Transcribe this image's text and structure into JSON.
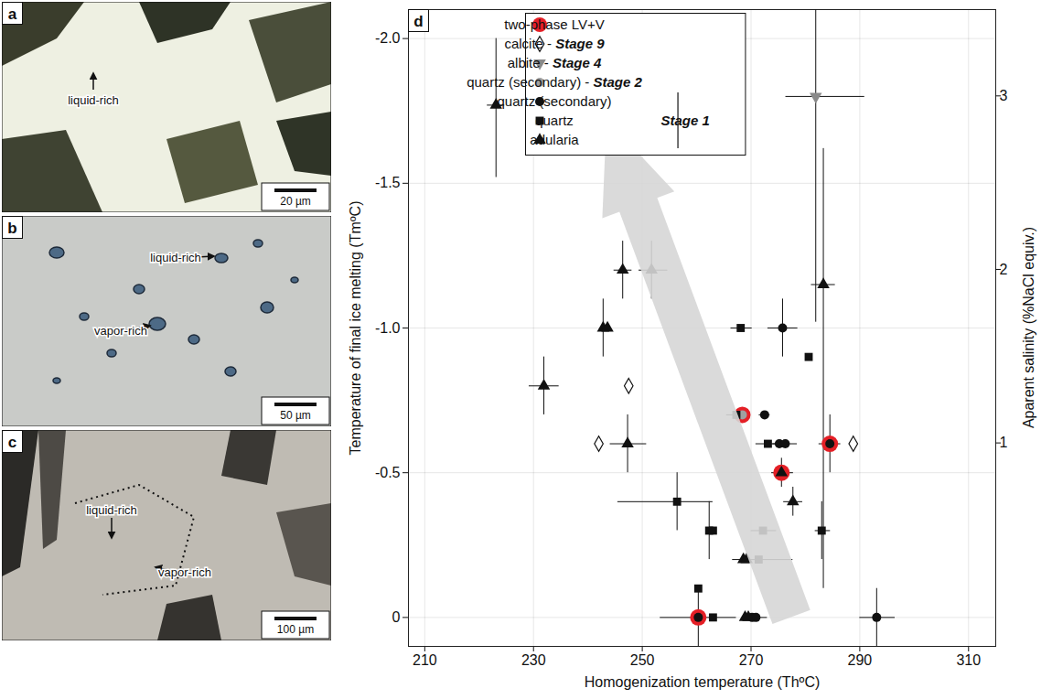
{
  "chart_data": {
    "type": "scatter",
    "panel": "d",
    "x_label": "Homogenization temperature (ThºC)",
    "y_label": "Temperature of final ice melting (TmºC)",
    "y2_label": "Aparent salinity (%NaCl equiv.)",
    "xlim": [
      207,
      315
    ],
    "xticks": [
      210,
      230,
      250,
      270,
      290,
      310
    ],
    "ylim": [
      0.1,
      -2.1
    ],
    "yticks": [
      0,
      -0.5,
      {
        "value": -1,
        "label": "-1.0"
      },
      -1.5,
      {
        "value": -2,
        "label": "-2.0"
      }
    ],
    "y2lim": [
      -0.17,
      3.5
    ],
    "y2ticks": [
      1,
      2,
      3
    ],
    "grid": true,
    "legend": "top-left",
    "annotations": [
      {
        "type": "arrow",
        "x": [
          277.5,
          243.5
        ],
        "y": [
          0,
          -1.72
        ]
      }
    ],
    "series": [
      {
        "name": "two-phase LV+V",
        "marker": "ring",
        "color": "#e41f26",
        "points": [
          {
            "x": 260.3,
            "y": 0
          },
          {
            "x": 268.4,
            "y": -0.7
          },
          {
            "x": 275.6,
            "y": -0.5
          },
          {
            "x": 284.5,
            "y": -0.6
          }
        ]
      },
      {
        "name": "calcite - Stage 9",
        "marker": "open-diamond",
        "color": "#111111",
        "points": [
          {
            "x": 247.5,
            "y": -0.8
          },
          {
            "x": 242,
            "y": -0.6
          },
          {
            "x": 288.8,
            "y": -0.6
          }
        ]
      },
      {
        "name": "albite - Stage 4",
        "marker": "triangle-down",
        "color": "#8a8a8a",
        "points": [
          {
            "x": 281.9,
            "y": -1.8,
            "x_error": [
              276.4,
              290.9
            ],
            "y_error": [
              -2.1,
              -1.02
            ]
          }
        ]
      },
      {
        "name": "quartz (secondary) - Stage 2",
        "marker": "circle",
        "color": "#a0a0a0",
        "points": [
          {
            "x": 268.4,
            "y": -0.7
          }
        ]
      },
      {
        "name": "quartz (secondary)",
        "group": "Stage 1",
        "marker": "circle",
        "color": "#111111",
        "points": [
          {
            "x": 275.8,
            "y": -1.0,
            "x_error": [
              273.1,
              278.6
            ],
            "y_error": [
              -1.1,
              -0.9
            ]
          },
          {
            "x": 272.5,
            "y": -0.7,
            "x_error": [
              271.5,
              273.5
            ]
          },
          {
            "x": 275.2,
            "y": -0.6,
            "x_error": [
              274,
              278.5
            ]
          },
          {
            "x": 276.3,
            "y": -0.6
          },
          {
            "x": 284.5,
            "y": -0.6,
            "x_error": [
              282.5,
              286.5
            ],
            "y_error": [
              -0.7,
              -0.5
            ]
          },
          {
            "x": 270.2,
            "y": 0
          },
          {
            "x": 270.9,
            "y": 0,
            "x_error": [
              269,
              273
            ]
          },
          {
            "x": 293.1,
            "y": 0,
            "x_error": [
              290,
              296.5
            ],
            "y_error": [
              -0.1,
              0.1
            ]
          },
          {
            "x": 260.3,
            "y": 0,
            "x_error": [
              253.3,
              267.3
            ],
            "y_error": [
              -0.1,
              0.1
            ]
          }
        ]
      },
      {
        "name": "quartz",
        "group": "Stage 1",
        "marker": "square",
        "color": "#111111",
        "points": [
          {
            "x": 268.1,
            "y": -1.0,
            "x_error": [
              266.3,
              270.2
            ]
          },
          {
            "x": 280.6,
            "y": -0.9
          },
          {
            "x": 267.3,
            "y": -0.7,
            "x_error": [
              265.5,
              268.8
            ]
          },
          {
            "x": 273.1,
            "y": -0.6,
            "x_error": [
              270.9,
              275.3
            ]
          },
          {
            "x": 256.4,
            "y": -0.4,
            "x_error": [
              245.5,
              263
            ],
            "y_error": [
              -0.5,
              -0.3
            ]
          },
          {
            "x": 262.3,
            "y": -0.3,
            "y_error": [
              -0.4,
              -0.2
            ]
          },
          {
            "x": 263,
            "y": -0.3
          },
          {
            "x": 272.2,
            "y": -0.3,
            "x_error": [
              270,
              274.7
            ]
          },
          {
            "x": 283,
            "y": -0.3,
            "x_error": [
              281.8,
              284.6
            ],
            "y_error": [
              -0.4,
              -0.2
            ]
          },
          {
            "x": 271.4,
            "y": -0.2
          },
          {
            "x": 260.3,
            "y": -0.1
          },
          {
            "x": 263,
            "y": 0
          }
        ]
      },
      {
        "name": "adularia",
        "group": "Stage 1",
        "marker": "triangle",
        "color": "#111111",
        "points": [
          {
            "x": 223.1,
            "y": -1.77,
            "x_error": [
              221.5,
              224.7
            ],
            "y_error": [
              -2.0,
              -1.52
            ]
          },
          {
            "x": 246.4,
            "y": -1.2,
            "x_error": [
              244.8,
              248.1
            ],
            "y_error": [
              -1.3,
              -1.1
            ]
          },
          {
            "x": 251.7,
            "y": -1.2,
            "x_error": [
              249.4,
              254.7
            ],
            "y_error": [
              -1.3,
              -1.1
            ]
          },
          {
            "x": 242.8,
            "y": -1.0,
            "y_error": [
              -1.1,
              -0.9
            ]
          },
          {
            "x": 243.6,
            "y": -1.0
          },
          {
            "x": 231.9,
            "y": -0.8,
            "x_error": [
              229.2,
              234.7
            ],
            "y_error": [
              -0.9,
              -0.7
            ]
          },
          {
            "x": 247.3,
            "y": -0.6,
            "x_error": [
              244.1,
              250.8
            ],
            "y_error": [
              -0.7,
              -0.5
            ]
          },
          {
            "x": 283.3,
            "y": -1.15,
            "x_error": [
              281.1,
              285.5
            ],
            "y_error": [
              -1.62,
              -0.1
            ]
          },
          {
            "x": 275.6,
            "y": -0.5,
            "x_error": [
              273.8,
              277.8
            ],
            "y_error": [
              -0.55,
              -0.45
            ]
          },
          {
            "x": 277.7,
            "y": -0.4,
            "x_error": [
              276,
              279.5
            ],
            "y_error": [
              -0.45,
              -0.35
            ]
          },
          {
            "x": 268.6,
            "y": -0.2,
            "x_error": [
              266.6,
              277.7
            ]
          },
          {
            "x": 269.2,
            "y": -0.2
          },
          {
            "x": 268.9,
            "y": 0
          },
          {
            "x": 269.5,
            "y": 0
          }
        ]
      }
    ]
  },
  "photo_panels": [
    {
      "letter": "a",
      "labels": [
        "liquid-rich"
      ],
      "scale_bar": "20 µm"
    },
    {
      "letter": "b",
      "labels": [
        "liquid-rich",
        "vapor-rich"
      ],
      "scale_bar": "50 µm"
    },
    {
      "letter": "c",
      "labels": [
        "liquid-rich",
        "vapor-rich"
      ],
      "scale_bar": "100 µm"
    }
  ]
}
